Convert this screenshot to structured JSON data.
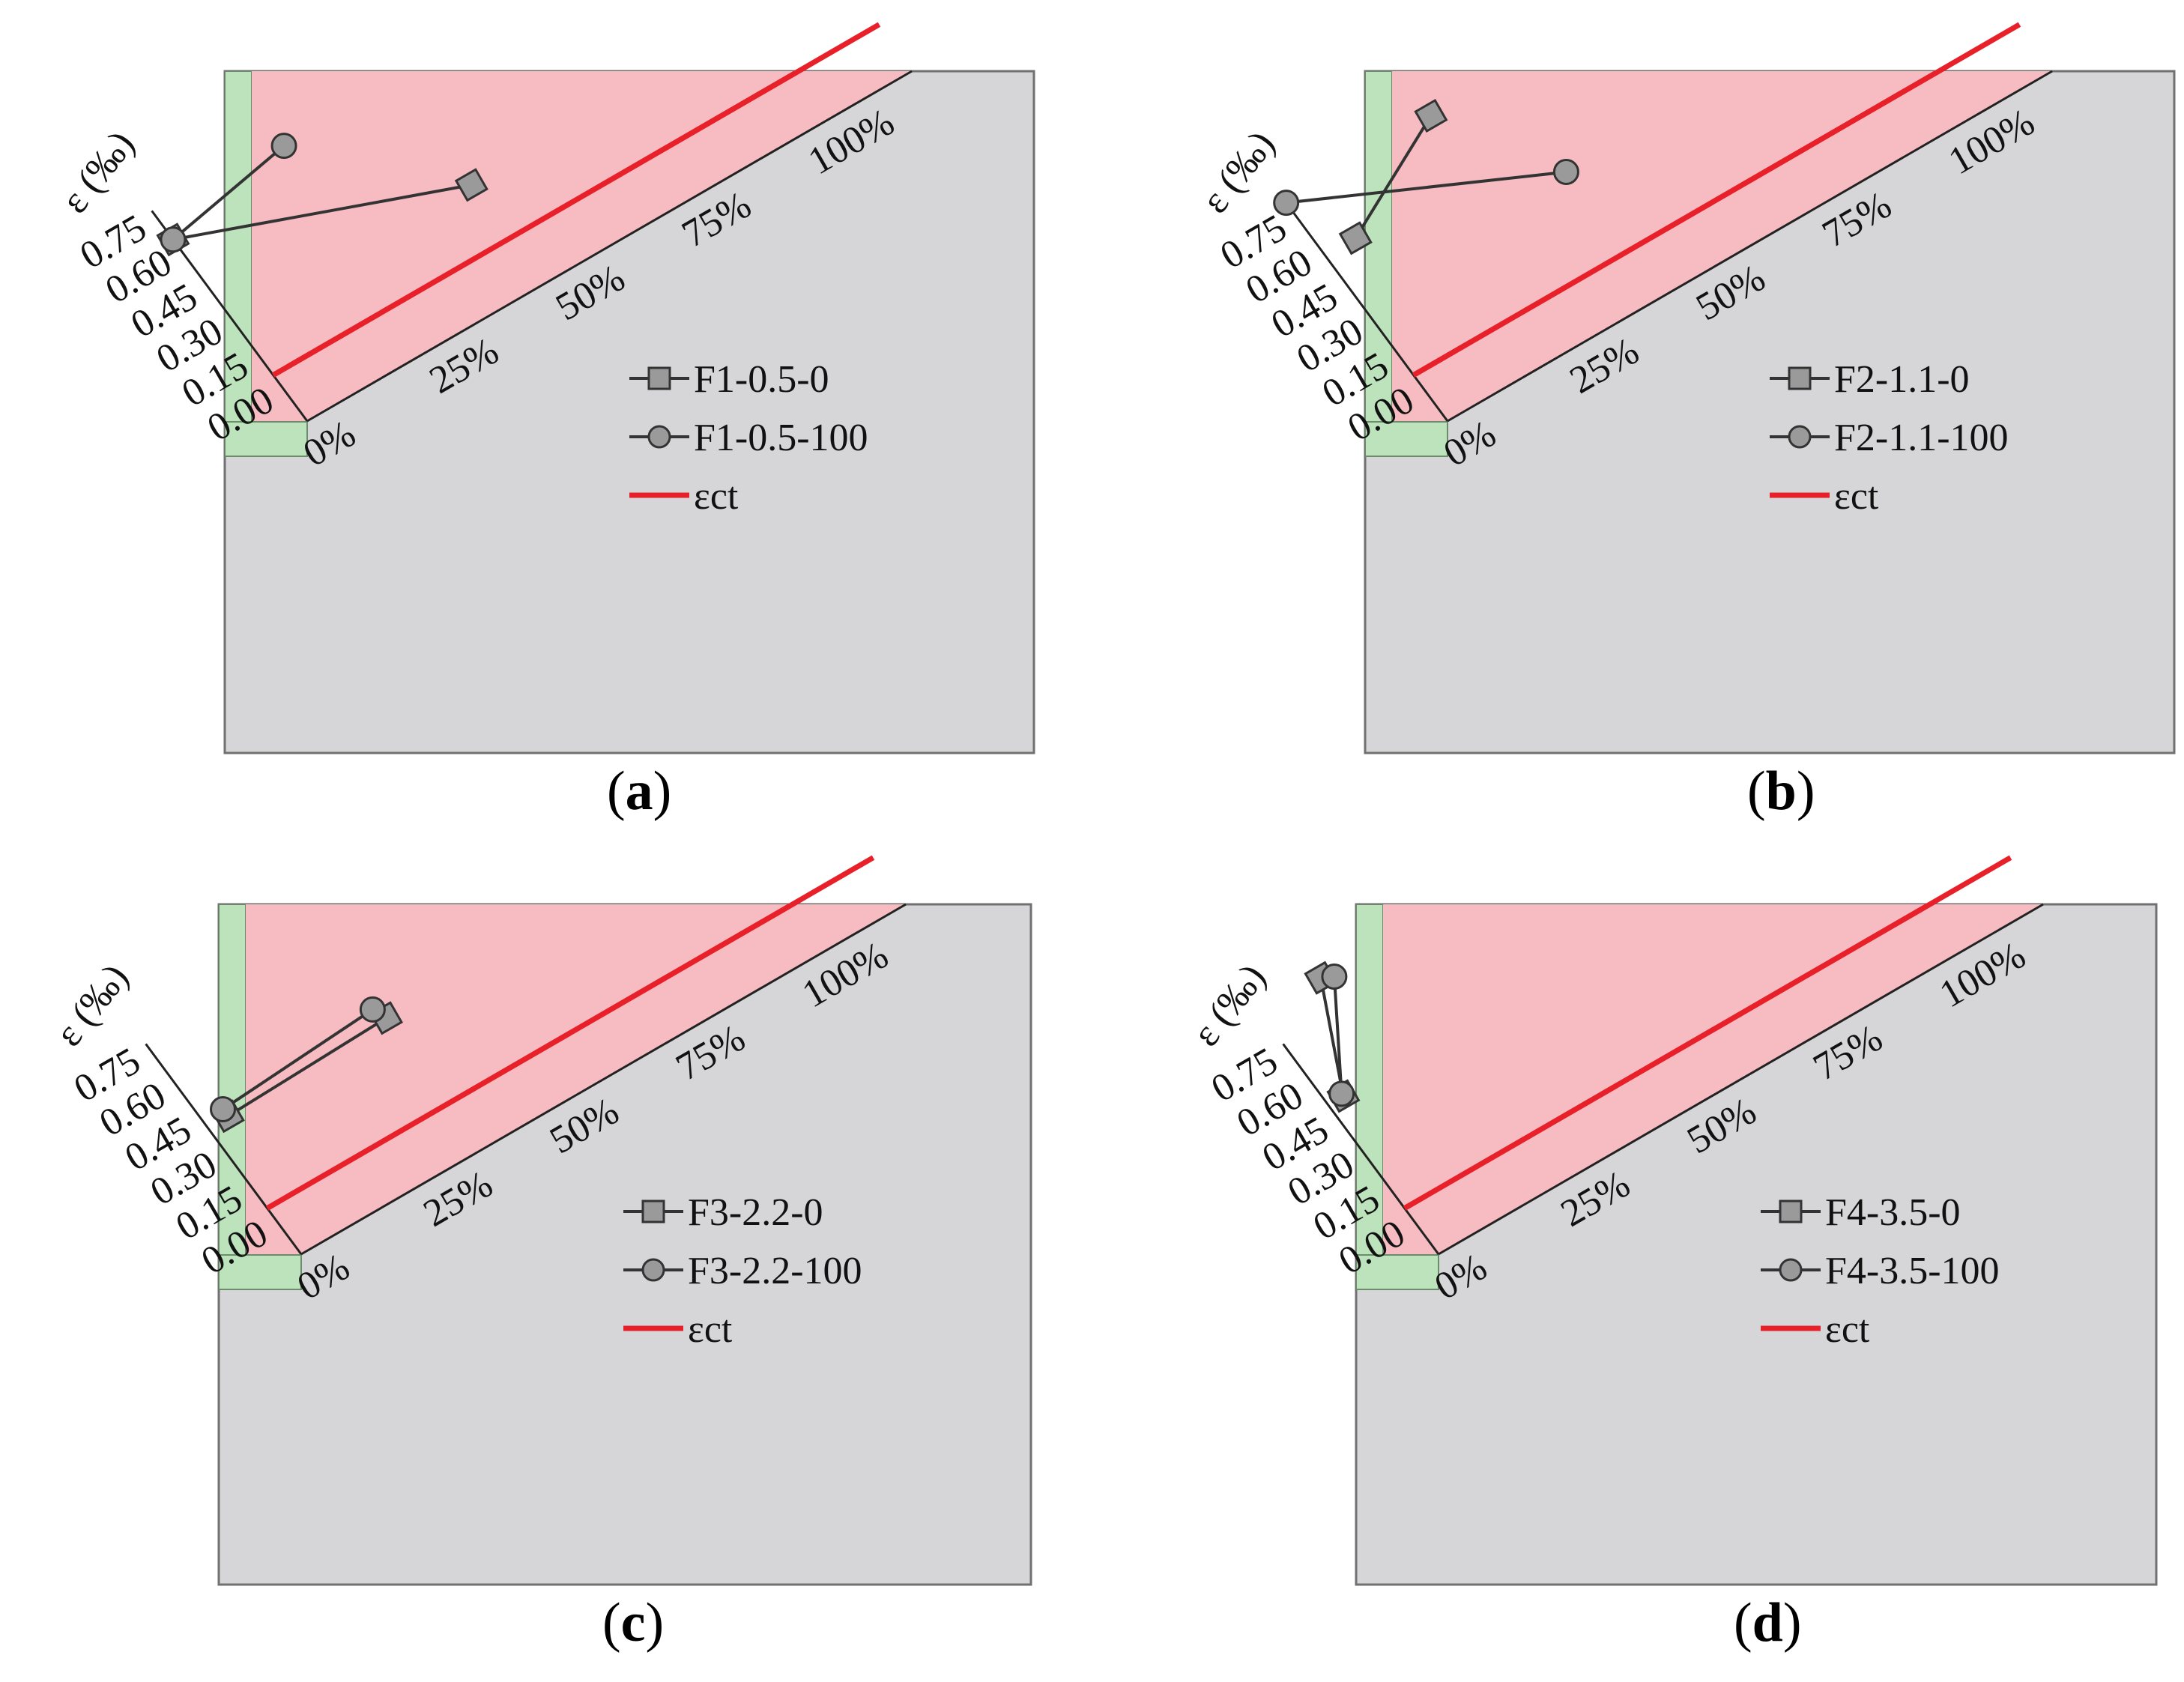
{
  "figure": {
    "panels": [
      {
        "label_open": "(",
        "label_letter": "a",
        "label_close": ")",
        "ylabel": "ε (‰)",
        "ct_label": "εct",
        "series": [
          {
            "name": "F1-0.5-0",
            "marker": "square",
            "points": [
              [
                0,
                0.79
              ],
              [
                47,
                0.43
              ]
            ]
          },
          {
            "name": "F1-0.5-100",
            "marker": "circle",
            "points": [
              [
                0,
                0.79
              ],
              [
                25,
                0.88
              ]
            ]
          }
        ]
      },
      {
        "label_open": "(",
        "label_letter": "b",
        "label_close": ")",
        "ylabel": "ε (‰)",
        "ct_label": "εct",
        "series": [
          {
            "name": "F2-1.1-0",
            "marker": "square",
            "points": [
              [
                6,
                0.72
              ],
              [
                29,
                0.96
              ]
            ]
          },
          {
            "name": "F2-1.1-100",
            "marker": "circle",
            "points": [
              [
                0,
                0.95
              ],
              [
                42,
                0.55
              ]
            ]
          }
        ]
      },
      {
        "label_open": "(",
        "label_letter": "c",
        "label_close": ")",
        "ylabel": "ε (‰)",
        "ct_label": "εct",
        "series": [
          {
            "name": "F3-2.2-0",
            "marker": "square",
            "points": [
              [
                4,
                0.55
              ],
              [
                36,
                0.57
              ]
            ]
          },
          {
            "name": "F3-2.2-100",
            "marker": "circle",
            "points": [
              [
                4,
                0.58
              ],
              [
                35,
                0.62
              ]
            ]
          }
        ]
      },
      {
        "label_open": "(",
        "label_letter": "d",
        "label_close": ")",
        "ylabel": "ε (‰)",
        "ct_label": "εct",
        "series": [
          {
            "name": "F4-3.5-0",
            "marker": "square",
            "points": [
              [
                3,
                0.65
              ],
              [
                12,
                1.05
              ]
            ]
          },
          {
            "name": "F4-3.5-100",
            "marker": "circle",
            "points": [
              [
                3,
                0.66
              ],
              [
                14,
                1.03
              ]
            ]
          }
        ]
      }
    ]
  },
  "chart_data": {
    "type": "scatter",
    "projection": "oblique",
    "ylabel": "ε (‰)",
    "y_ticks": [
      "0.00",
      "0.15",
      "0.30",
      "0.45",
      "0.60",
      "0.75"
    ],
    "x_ticks": [
      "0%",
      "25%",
      "50%",
      "75%",
      "100%"
    ],
    "ct_line": {
      "name": "εct",
      "y": 0.2,
      "color": "#e8202a"
    },
    "colors": {
      "valid_zone": "#f7bcc1",
      "margin_zone": "#bde3bd",
      "background": "#d6d6d8",
      "marker": "#9a9a9a"
    },
    "panels": [
      {
        "panel": "a",
        "series": [
          {
            "name": "F1-0.5-0",
            "x": [
              0,
              47
            ],
            "y": [
              0.79,
              0.43
            ]
          },
          {
            "name": "F1-0.5-100",
            "x": [
              0,
              25
            ],
            "y": [
              0.79,
              0.88
            ]
          }
        ]
      },
      {
        "panel": "b",
        "series": [
          {
            "name": "F2-1.1-0",
            "x": [
              6,
              29
            ],
            "y": [
              0.72,
              0.96
            ]
          },
          {
            "name": "F2-1.1-100",
            "x": [
              0,
              42
            ],
            "y": [
              0.95,
              0.55
            ]
          }
        ]
      },
      {
        "panel": "c",
        "series": [
          {
            "name": "F3-2.2-0",
            "x": [
              4,
              36
            ],
            "y": [
              0.55,
              0.57
            ]
          },
          {
            "name": "F3-2.2-100",
            "x": [
              4,
              35
            ],
            "y": [
              0.58,
              0.62
            ]
          }
        ]
      },
      {
        "panel": "d",
        "series": [
          {
            "name": "F4-3.5-0",
            "x": [
              3,
              12
            ],
            "y": [
              0.65,
              1.05
            ]
          },
          {
            "name": "F4-3.5-100",
            "x": [
              3,
              14
            ],
            "y": [
              0.66,
              1.03
            ]
          }
        ]
      }
    ]
  }
}
